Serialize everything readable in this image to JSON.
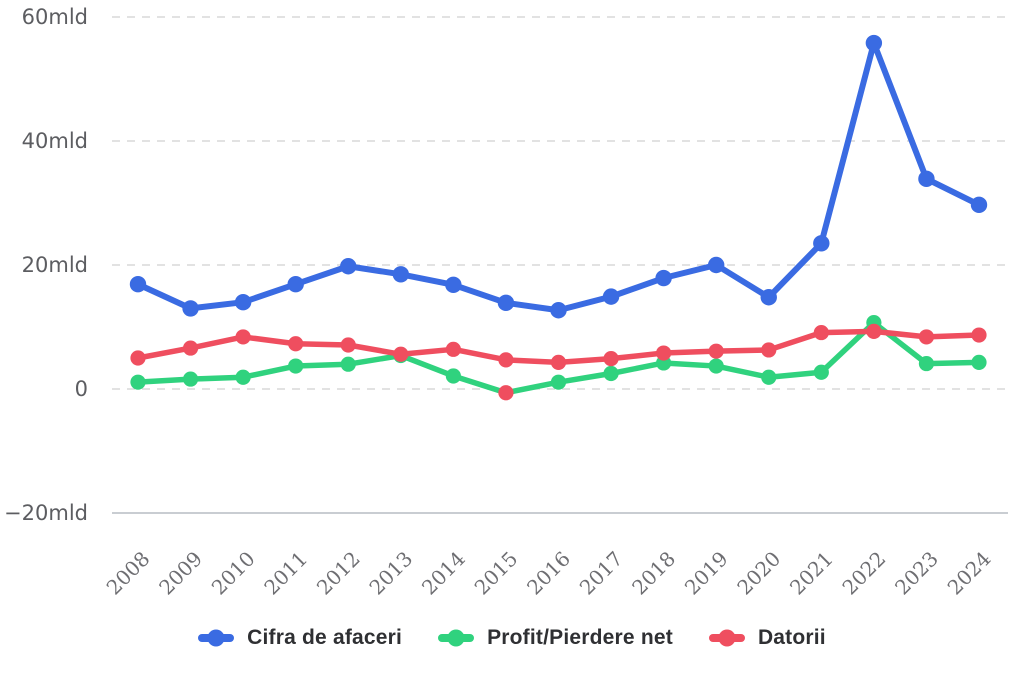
{
  "background_color": "#ffffff",
  "chart_data": {
    "type": "line",
    "unit": "mld",
    "x": [
      "2008",
      "2009",
      "2010",
      "2011",
      "2012",
      "2013",
      "2014",
      "2015",
      "2016",
      "2017",
      "2018",
      "2019",
      "2020",
      "2021",
      "2022",
      "2023",
      "2024"
    ],
    "series": [
      {
        "name": "Cifra de afaceri",
        "color": "#3a6be2",
        "values": [
          16.9,
          13.0,
          14.0,
          16.9,
          19.8,
          18.5,
          16.8,
          13.9,
          12.7,
          14.9,
          17.9,
          20.0,
          14.8,
          23.5,
          55.8,
          33.9,
          29.7
        ]
      },
      {
        "name": "Profit/Pierdere net",
        "color": "#30d27e",
        "negative_marker_color": "#ef4e5f",
        "values": [
          1.1,
          1.6,
          1.9,
          3.7,
          4.0,
          5.4,
          2.1,
          -0.6,
          1.1,
          2.5,
          4.2,
          3.7,
          1.9,
          2.7,
          10.7,
          4.1,
          4.3
        ]
      },
      {
        "name": "Datorii",
        "color": "#ef4e5f",
        "values": [
          5.0,
          6.6,
          8.4,
          7.3,
          7.1,
          5.6,
          6.4,
          4.7,
          4.3,
          4.9,
          5.8,
          6.1,
          6.3,
          9.1,
          9.3,
          8.4,
          8.7
        ]
      }
    ],
    "y_ticks": [
      {
        "value": 60,
        "label": "60mld"
      },
      {
        "value": 40,
        "label": "40mld"
      },
      {
        "value": 20,
        "label": "20mld"
      },
      {
        "value": 0,
        "label": "0"
      },
      {
        "value": -20,
        "label": "−20mld"
      }
    ],
    "ylim": [
      -20,
      60
    ],
    "grid": "horizontal-dashed",
    "grid_color": "#d8d8d8",
    "baseline_color": "#c9cdd2",
    "legend_position": "bottom"
  }
}
